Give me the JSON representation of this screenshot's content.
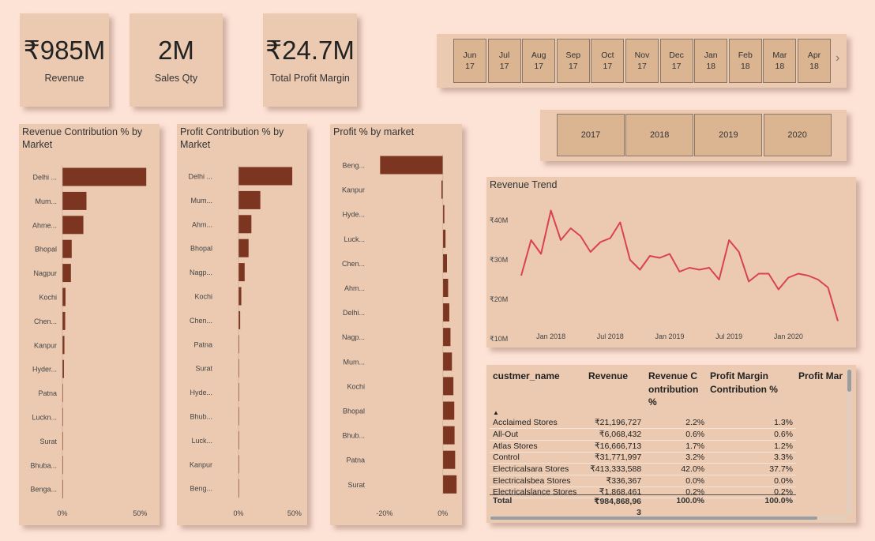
{
  "kpis": {
    "revenue": {
      "value": "₹985M",
      "label": "Revenue"
    },
    "qty": {
      "value": "2M",
      "label": "Sales Qty"
    },
    "profit": {
      "value": "₹24.7M",
      "label": "Total Profit Margin"
    }
  },
  "month_slicer": {
    "months": [
      {
        "m": "Jun",
        "y": "17"
      },
      {
        "m": "Jul",
        "y": "17"
      },
      {
        "m": "Aug",
        "y": "17"
      },
      {
        "m": "Sep",
        "y": "17"
      },
      {
        "m": "Oct",
        "y": "17"
      },
      {
        "m": "Nov",
        "y": "17"
      },
      {
        "m": "Dec",
        "y": "17"
      },
      {
        "m": "Jan",
        "y": "18"
      },
      {
        "m": "Feb",
        "y": "18"
      },
      {
        "m": "Mar",
        "y": "18"
      },
      {
        "m": "Apr",
        "y": "18"
      }
    ],
    "next_icon": "chevron-right-icon"
  },
  "year_slicer": {
    "years": [
      "2017",
      "2018",
      "2019",
      "2020"
    ]
  },
  "colors": {
    "bar": "#7b3520",
    "line": "#d9434f",
    "card": "#ebcab1",
    "background": "#fde2d6"
  },
  "chart_data": [
    {
      "id": "revenue_contribution",
      "type": "bar",
      "orientation": "horizontal",
      "title": "Revenue Contribution % by Market",
      "categories": [
        "Delhi ...",
        "Mum...",
        "Ahme...",
        "Bhopal",
        "Nagpur",
        "Kochi",
        "Chen...",
        "Kanpur",
        "Hyder...",
        "Patna",
        "Luckn...",
        "Surat",
        "Bhuba...",
        "Benga..."
      ],
      "values": [
        54,
        15.5,
        13.5,
        6,
        5.5,
        2,
        1.8,
        1.3,
        1,
        0.3,
        0.3,
        0.2,
        0.2,
        0.2
      ],
      "xticks": [
        "0%",
        "50%"
      ],
      "xlim": [
        0,
        60
      ]
    },
    {
      "id": "profit_contribution",
      "type": "bar",
      "orientation": "horizontal",
      "title": "Profit Contribution % by Market",
      "categories": [
        "Delhi ...",
        "Mum...",
        "Ahm...",
        "Bhopal",
        "Nagp...",
        "Kochi",
        "Chen...",
        "Patna",
        "Surat",
        "Hyde...",
        "Bhub...",
        "Luck...",
        "Kanpur",
        "Beng..."
      ],
      "values": [
        48,
        19.5,
        11.5,
        9,
        5.5,
        2.5,
        1.5,
        0.6,
        0.4,
        0.4,
        0.3,
        0.3,
        0.2,
        0.1
      ],
      "xticks": [
        "0%",
        "50%"
      ],
      "xlim": [
        0,
        55
      ]
    },
    {
      "id": "profit_pct_market",
      "type": "bar",
      "orientation": "horizontal",
      "title": "Profit % by market",
      "categories": [
        "Beng...",
        "Kanpur",
        "Hyde...",
        "Luck...",
        "Chen...",
        "Ahm...",
        "Delhi...",
        "Nagp...",
        "Mum...",
        "Kochi",
        "Bhopal",
        "Bhub...",
        "Patna",
        "Surat"
      ],
      "values": [
        -21.5,
        -0.5,
        0.5,
        0.9,
        1.4,
        1.8,
        2.2,
        2.6,
        3.1,
        3.6,
        3.9,
        4.0,
        4.2,
        4.7
      ],
      "xticks": [
        "-20%",
        "0%"
      ],
      "xlim": [
        -27,
        6
      ]
    },
    {
      "id": "revenue_trend",
      "type": "line",
      "title": "Revenue Trend",
      "x_start": "Oct 2017",
      "x_interval": "month",
      "values": [
        26,
        35,
        31.5,
        42.5,
        35,
        38,
        36,
        32,
        34.5,
        35.5,
        39.5,
        30,
        27.5,
        31,
        30.5,
        31.5,
        27,
        28,
        27.5,
        28,
        25,
        35,
        32,
        24.5,
        26.5,
        26.5,
        22.5,
        25.5,
        26.5,
        26,
        25,
        23,
        14.5
      ],
      "yticks": [
        "₹10M",
        "₹20M",
        "₹30M",
        "₹40M"
      ],
      "ylim": [
        10,
        45
      ],
      "xticks": [
        "Jan 2018",
        "Jul 2018",
        "Jan 2019",
        "Jul 2019",
        "Jan 2020"
      ]
    }
  ],
  "table": {
    "headers": [
      "custmer_name",
      "Revenue",
      "Revenue Contribution %",
      "Profit Margin Contribution %",
      "Profit Mar"
    ],
    "sort_icon": "sort-ascending-icon",
    "rows": [
      [
        "Acclaimed Stores",
        "₹21,196,727",
        "2.2%",
        "1.3%"
      ],
      [
        "All-Out",
        "₹6,068,432",
        "0.6%",
        "0.6%"
      ],
      [
        "Atlas Stores",
        "₹16,666,713",
        "1.7%",
        "1.2%"
      ],
      [
        "Control",
        "₹31,771,997",
        "3.2%",
        "3.3%"
      ],
      [
        "Electricalsara Stores",
        "₹413,333,588",
        "42.0%",
        "37.7%"
      ],
      [
        "Electricalsbea Stores",
        "₹336,367",
        "0.0%",
        "0.0%"
      ],
      [
        "Electricalslance Stores",
        "₹1,868,461",
        "0.2%",
        "0.2%"
      ]
    ],
    "total": {
      "label": "Total",
      "revenue": "₹984,868,96\n3",
      "revenue_pct": "100.0%",
      "profit_pct": "100.0%"
    }
  }
}
